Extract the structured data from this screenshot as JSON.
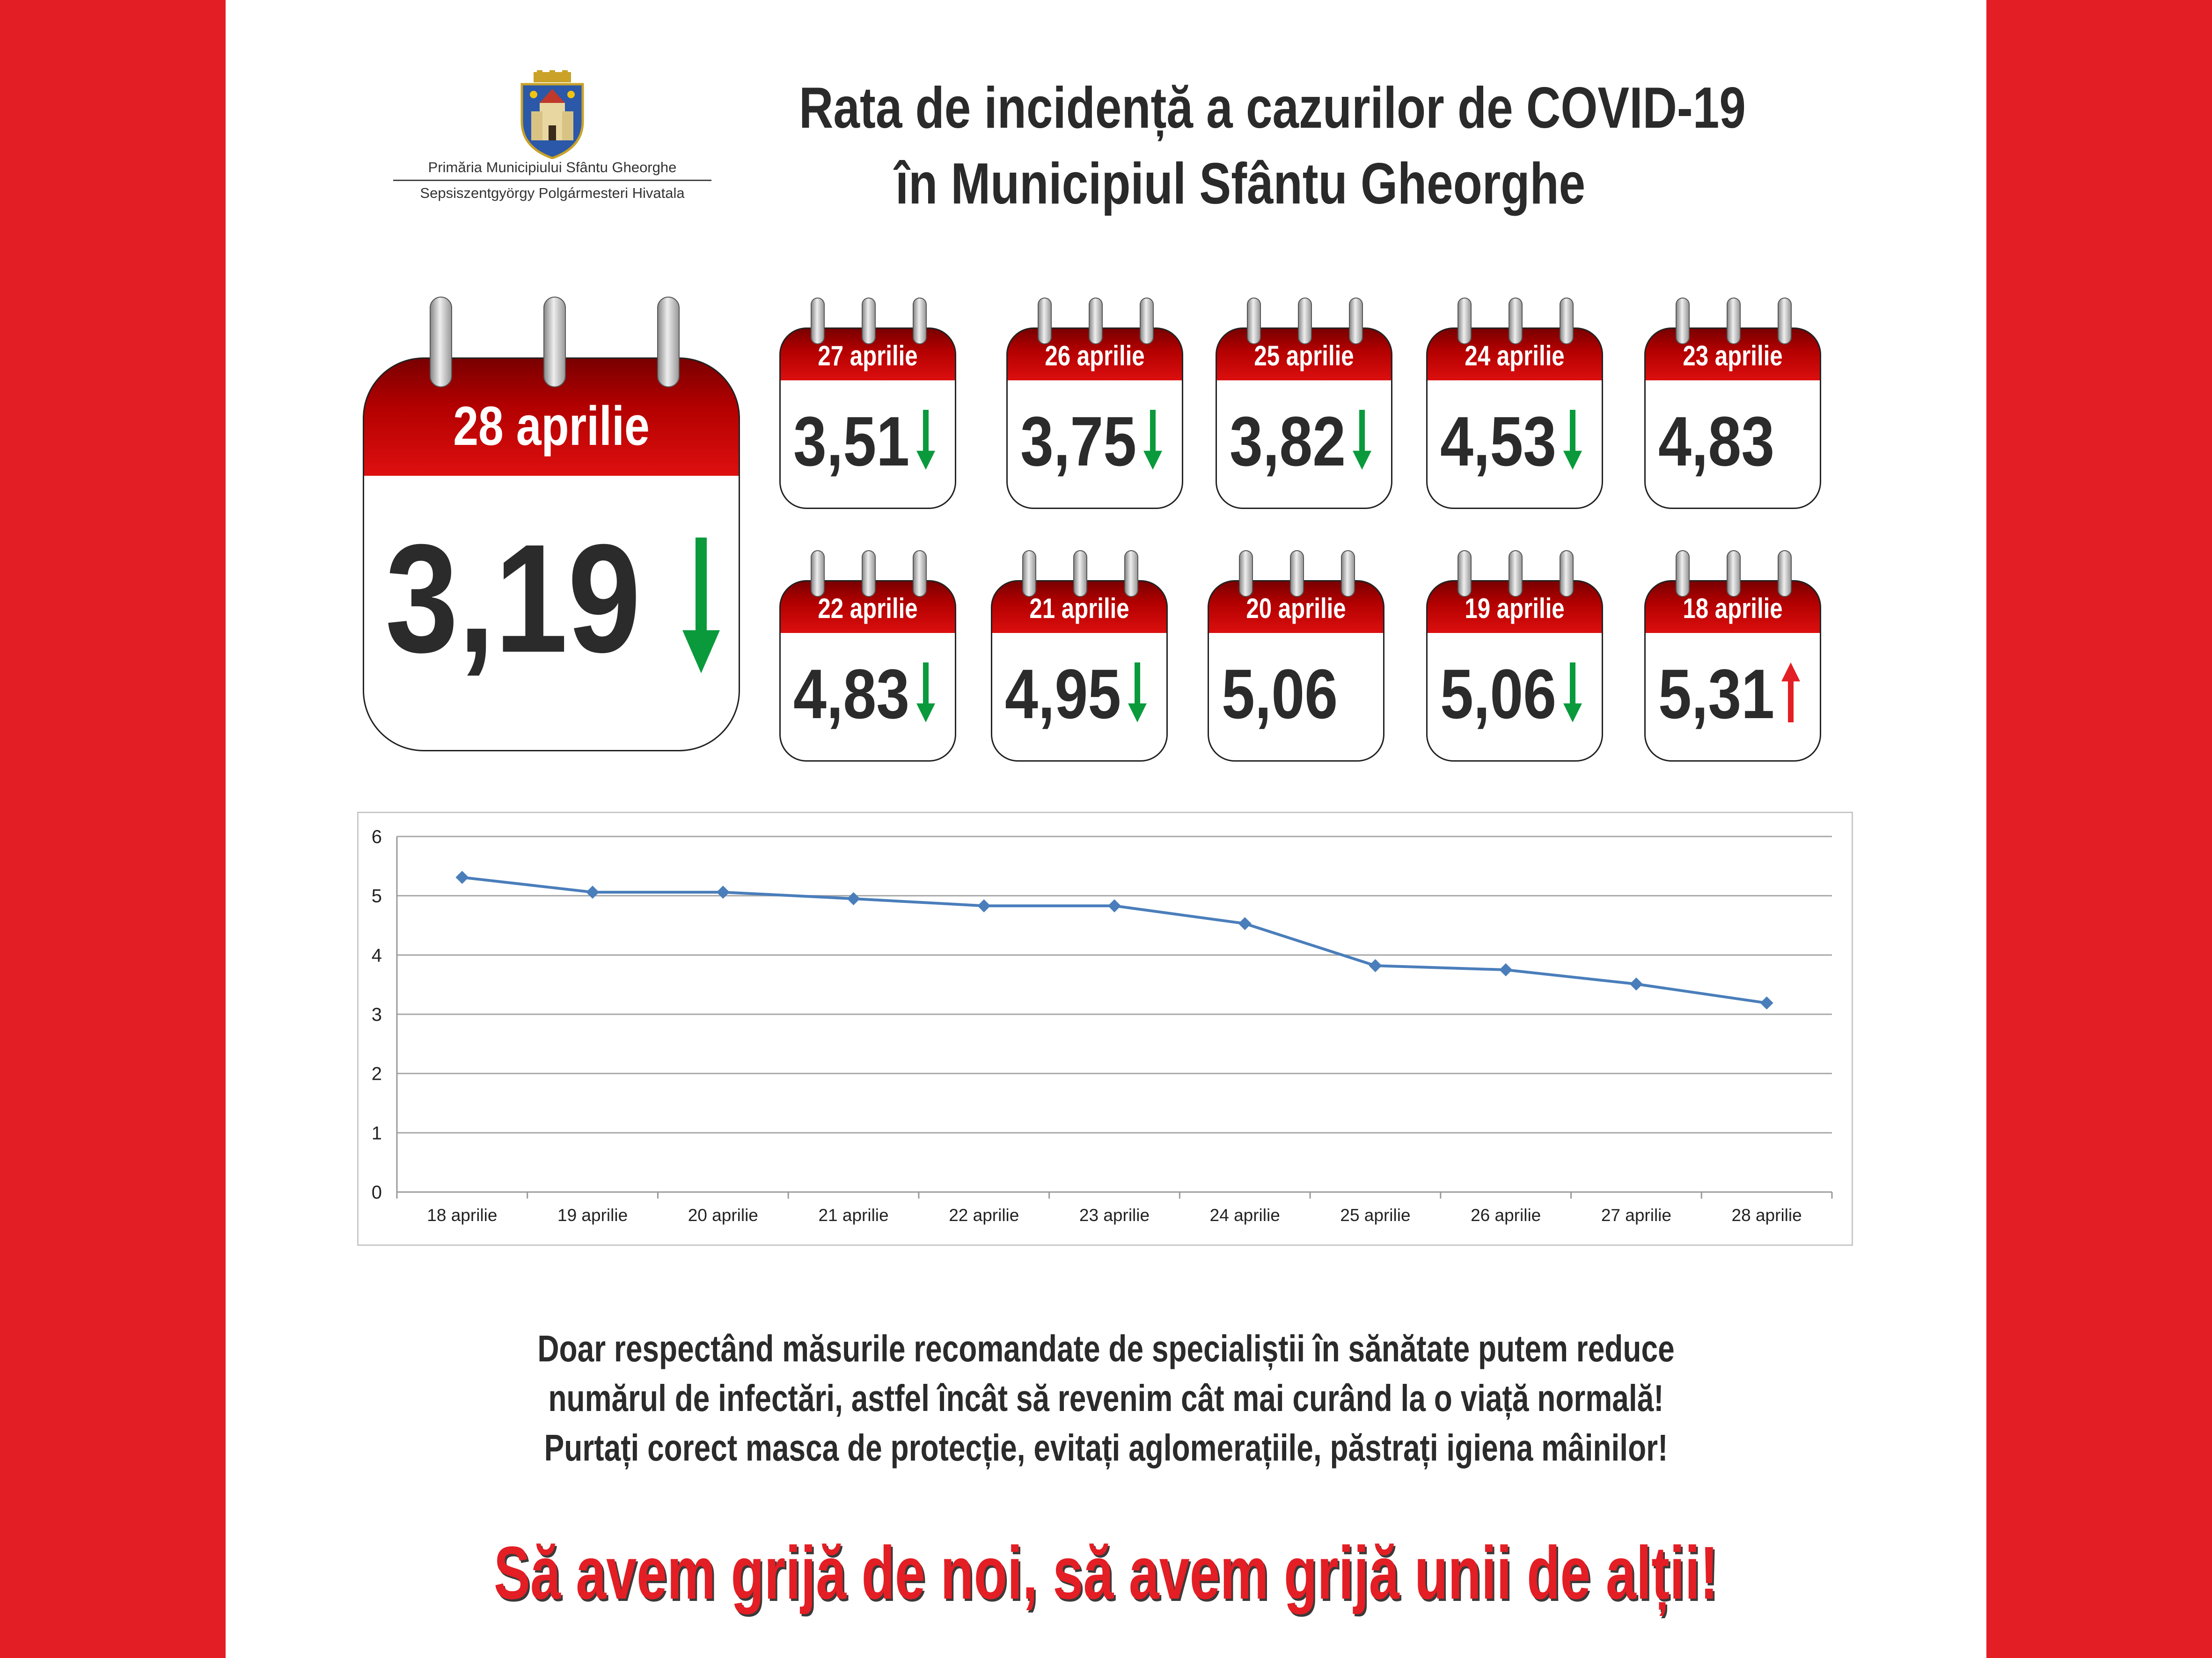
{
  "header": {
    "title_line1": "Rata de incidență a cazurilor de COVID-19",
    "title_line2": "în Municipiul Sfântu Gheorghe"
  },
  "logo": {
    "line1": "Primăria Municipiului Sfântu Gheorghe",
    "line2": "Sepsiszentgyörgy Polgármesteri Hivatala"
  },
  "featured": {
    "date": "28 aprilie",
    "value": "3,19",
    "trend": "down"
  },
  "calendars": [
    {
      "date": "27 aprilie",
      "value": "3,51",
      "trend": "down"
    },
    {
      "date": "26 aprilie",
      "value": "3,75",
      "trend": "down"
    },
    {
      "date": "25 aprilie",
      "value": "3,82",
      "trend": "down"
    },
    {
      "date": "24 aprilie",
      "value": "4,53",
      "trend": "down"
    },
    {
      "date": "23 aprilie",
      "value": "4,83",
      "trend": "none"
    },
    {
      "date": "22 aprilie",
      "value": "4,83",
      "trend": "down"
    },
    {
      "date": "21 aprilie",
      "value": "4,95",
      "trend": "down"
    },
    {
      "date": "20 aprilie",
      "value": "5,06",
      "trend": "none"
    },
    {
      "date": "19 aprilie",
      "value": "5,06",
      "trend": "down"
    },
    {
      "date": "18 aprilie",
      "value": "5,31",
      "trend": "up"
    }
  ],
  "colors": {
    "brand_red": "#e31e24",
    "down_arrow": "#0a9a3c",
    "up_arrow": "#e31e24",
    "line": "#4a7ebb"
  },
  "chart_data": {
    "type": "line",
    "categories": [
      "18 aprilie",
      "19 aprilie",
      "20 aprilie",
      "21 aprilie",
      "22 aprilie",
      "23 aprilie",
      "24 aprilie",
      "25 aprilie",
      "26 aprilie",
      "27 aprilie",
      "28 aprilie"
    ],
    "values": [
      5.31,
      5.06,
      5.06,
      4.95,
      4.83,
      4.83,
      4.53,
      3.82,
      3.75,
      3.51,
      3.19
    ],
    "y_ticks": [
      "0",
      "1",
      "2",
      "3",
      "4",
      "5",
      "6"
    ],
    "ylim": [
      0,
      6
    ],
    "grid": true,
    "legend": "none",
    "title": "",
    "xlabel": "",
    "ylabel": ""
  },
  "message": {
    "line1": "Doar respectând măsurile recomandate de specialiștii în sănătate putem reduce",
    "line2": "numărul de infectări, astfel încât să revenim cât mai curând la o viață normală!",
    "line3": "Purtați corect masca de protecție, evitați aglomerațiile, păstrați igiena mâinilor!"
  },
  "slogan": "Să avem grijă de noi, să avem grijă unii de alții!"
}
